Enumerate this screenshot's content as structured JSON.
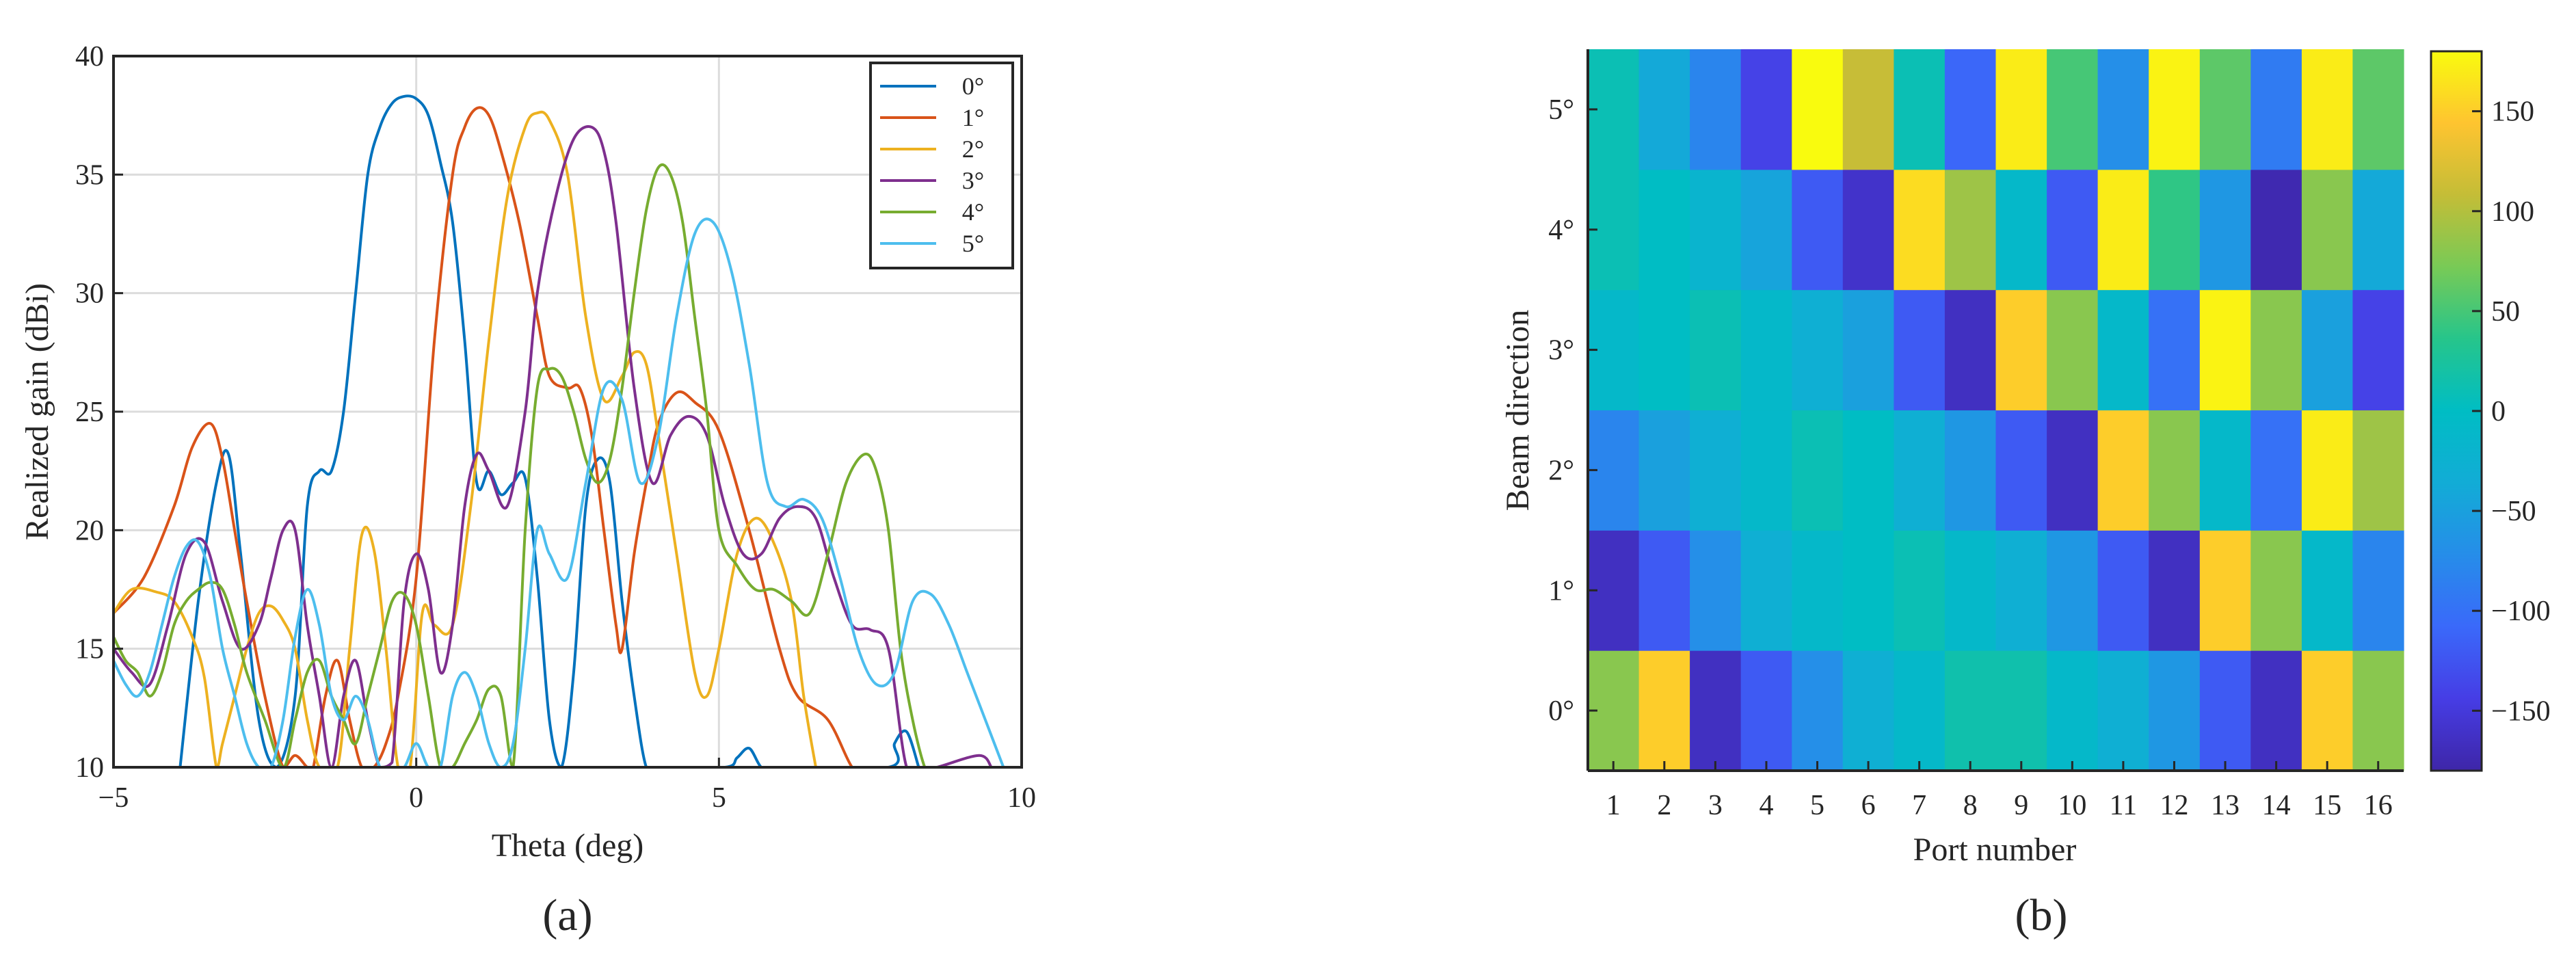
{
  "panel_labels": {
    "a": "(a)",
    "b": "(b)"
  },
  "chart_data": [
    {
      "type": "line",
      "xlabel": "Theta (deg)",
      "ylabel": "Realized gain (dBi)",
      "xlim": [
        -5,
        10
      ],
      "ylim": [
        10,
        40
      ],
      "xticks": [
        -5,
        0,
        5,
        10
      ],
      "yticks": [
        10,
        15,
        20,
        25,
        30,
        35,
        40
      ],
      "xtick_labels": [
        "−5",
        "0",
        "5",
        "10"
      ],
      "ytick_labels": [
        "10",
        "15",
        "20",
        "25",
        "30",
        "35",
        "40"
      ],
      "grid": true,
      "legend_position": "top-right",
      "series": [
        {
          "name": "0°",
          "color": "#0072BD",
          "x": [
            -3.9,
            -3.6,
            -3.3,
            -3.1,
            -2.9,
            -2.6,
            -2.3,
            -2.0,
            -1.8,
            -1.6,
            -1.4,
            -1.2,
            -1.0,
            -0.8,
            -0.6,
            -0.4,
            -0.2,
            0.0,
            0.2,
            0.4,
            0.6,
            0.8,
            1.0,
            1.2,
            1.4,
            1.6,
            1.8,
            2.0,
            2.2,
            2.4,
            2.6,
            2.8,
            3.0,
            3.2,
            3.4,
            3.6,
            3.8,
            4.0,
            5.1,
            5.3,
            5.5,
            5.7,
            5.9,
            7.8,
            7.9,
            8.1,
            8.3
          ],
          "y": [
            10,
            17,
            22,
            23.2,
            19,
            12,
            10,
            13,
            21,
            22.5,
            22.5,
            25,
            30,
            35,
            37,
            38,
            38.3,
            38.2,
            37.5,
            35.5,
            33,
            28,
            22,
            22.5,
            21.5,
            22,
            22.2,
            18,
            12,
            10,
            14,
            21,
            23,
            22,
            17,
            13,
            10,
            10,
            10,
            10.4,
            10.8,
            10,
            10,
            10,
            11,
            11.5,
            10
          ]
        },
        {
          "name": "1°",
          "color": "#D95319",
          "x": [
            -5.0,
            -4.5,
            -4.0,
            -3.7,
            -3.4,
            -3.2,
            -3.0,
            -2.8,
            -2.5,
            -2.2,
            -2.0,
            -1.8,
            -1.7,
            -1.5,
            -1.3,
            -1.1,
            -0.9,
            -0.7,
            -0.5,
            -0.3,
            0.0,
            0.3,
            0.6,
            0.8,
            1.0,
            1.2,
            1.4,
            1.7,
            2.0,
            2.2,
            2.5,
            2.7,
            2.9,
            3.1,
            3.3,
            3.4,
            3.6,
            3.8,
            4.0,
            4.3,
            4.6,
            5.0,
            5.5,
            6.0,
            6.3,
            6.8,
            7.2,
            7.4
          ],
          "y": [
            16.5,
            18,
            21,
            23.5,
            24.5,
            23,
            20,
            17,
            13,
            10,
            10.5,
            10,
            10,
            13,
            14.5,
            12,
            10,
            10,
            11,
            13,
            18,
            28,
            35,
            37,
            37.8,
            37.5,
            36,
            33,
            29,
            26.5,
            26,
            26,
            24,
            20,
            16,
            15,
            19,
            22,
            24.5,
            25.8,
            25.4,
            24.2,
            20,
            15,
            13,
            12,
            10,
            10
          ]
        },
        {
          "name": "2°",
          "color": "#EDB120",
          "x": [
            -5.0,
            -4.7,
            -4.3,
            -4.0,
            -3.7,
            -3.5,
            -3.3,
            -3.2,
            -3.0,
            -2.8,
            -2.6,
            -2.4,
            -2.2,
            -2.0,
            -1.8,
            -1.6,
            -1.3,
            -1.1,
            -0.9,
            -0.7,
            -0.5,
            -0.3,
            -0.1,
            0.1,
            0.3,
            0.6,
            0.9,
            1.2,
            1.5,
            1.8,
            2.0,
            2.2,
            2.5,
            2.8,
            3.1,
            3.4,
            3.6,
            3.8,
            4.0,
            4.3,
            4.6,
            4.8,
            5.0,
            5.3,
            5.6,
            5.9,
            6.2,
            6.4,
            6.6
          ],
          "y": [
            16.5,
            17.5,
            17.4,
            17,
            15.5,
            13.8,
            10,
            11,
            13,
            15,
            16.5,
            16.8,
            16.2,
            15,
            12,
            10,
            10,
            15,
            19.8,
            19.2,
            15,
            10,
            10,
            16.5,
            16,
            16,
            21,
            28,
            34,
            37,
            37.6,
            37.3,
            35,
            29,
            25.5,
            26.5,
            27.5,
            27,
            24,
            19,
            14,
            13,
            15,
            19,
            20.5,
            19.5,
            17,
            13,
            10
          ]
        },
        {
          "name": "3°",
          "color": "#7E2F8E",
          "x": [
            -5.0,
            -4.7,
            -4.4,
            -4.1,
            -3.8,
            -3.5,
            -3.2,
            -2.9,
            -2.6,
            -2.4,
            -2.2,
            -2.0,
            -1.8,
            -1.6,
            -1.4,
            -1.2,
            -1.0,
            -0.8,
            -0.6,
            -0.4,
            -0.2,
            0.0,
            0.2,
            0.4,
            0.6,
            0.8,
            1.0,
            1.2,
            1.5,
            1.8,
            2.0,
            2.3,
            2.6,
            2.9,
            3.1,
            3.3,
            3.6,
            3.9,
            4.2,
            4.5,
            4.8,
            5.1,
            5.4,
            5.7,
            6.0,
            6.3,
            6.6,
            6.9,
            7.2,
            7.5,
            7.8,
            8.1,
            8.4,
            8.6,
            9.3,
            9.5
          ],
          "y": [
            15,
            14,
            13.5,
            16,
            19,
            19.5,
            17,
            15,
            16,
            18,
            20,
            20,
            16,
            13,
            10,
            13,
            14.5,
            12,
            10,
            10.2,
            17,
            19,
            17.5,
            14,
            16,
            21,
            23.2,
            22.5,
            21,
            25,
            30,
            34,
            36.5,
            37,
            36,
            33,
            26,
            22,
            24,
            24.8,
            24,
            21,
            19,
            19,
            20.5,
            21,
            20.5,
            18,
            16,
            15.8,
            15,
            10,
            10,
            10,
            10.5,
            10
          ]
        },
        {
          "name": "4°",
          "color": "#77AC30",
          "x": [
            -5.0,
            -4.8,
            -4.6,
            -4.4,
            -4.2,
            -4.0,
            -3.8,
            -3.6,
            -3.4,
            -3.2,
            -3.0,
            -2.8,
            -2.5,
            -2.2,
            -2.0,
            -1.8,
            -1.6,
            -1.4,
            -1.2,
            -1.0,
            -0.8,
            -0.6,
            -0.4,
            -0.2,
            0.0,
            0.2,
            0.4,
            0.6,
            0.8,
            1.0,
            1.2,
            1.4,
            1.6,
            1.8,
            2.0,
            2.2,
            2.4,
            2.6,
            2.8,
            3.0,
            3.2,
            3.4,
            3.6,
            3.8,
            4.0,
            4.2,
            4.4,
            4.6,
            4.8,
            5.0,
            5.3,
            5.6,
            5.9,
            6.2,
            6.5,
            6.8,
            7.1,
            7.4,
            7.6,
            7.8,
            8.0,
            8.2,
            8.4,
            8.5
          ],
          "y": [
            15.5,
            14.5,
            14,
            13,
            14,
            16,
            17,
            17.5,
            17.8,
            17.5,
            16,
            14,
            12,
            10,
            12,
            14,
            14.5,
            13,
            12,
            11,
            13,
            15,
            17,
            17.3,
            16,
            13,
            10,
            10,
            11,
            12,
            13.3,
            13,
            10,
            20,
            26,
            26.8,
            26.5,
            25,
            23,
            22,
            23,
            26,
            30,
            33.5,
            35.3,
            35,
            33,
            29,
            25,
            20,
            18.5,
            17.5,
            17.5,
            17,
            16.5,
            19,
            22,
            23.2,
            22.5,
            20,
            15,
            12,
            10,
            10
          ]
        },
        {
          "name": "5°",
          "color": "#4DBEEE",
          "x": [
            -5.0,
            -4.8,
            -4.6,
            -4.4,
            -4.2,
            -4.0,
            -3.8,
            -3.6,
            -3.4,
            -3.2,
            -3.0,
            -2.8,
            -2.6,
            -2.4,
            -2.2,
            -2.0,
            -1.8,
            -1.6,
            -1.4,
            -1.2,
            -1.0,
            -0.8,
            -0.6,
            -0.4,
            -0.2,
            0.0,
            0.2,
            0.4,
            0.6,
            0.8,
            1.0,
            1.2,
            1.4,
            1.6,
            1.8,
            2.0,
            2.2,
            2.5,
            2.8,
            3.1,
            3.4,
            3.7,
            4.0,
            4.3,
            4.6,
            4.9,
            5.2,
            5.5,
            5.8,
            6.1,
            6.4,
            6.7,
            7.0,
            7.3,
            7.6,
            7.9,
            8.2,
            8.5,
            8.8,
            9.1,
            9.4,
            9.7
          ],
          "y": [
            14.5,
            13.5,
            13,
            14,
            16,
            18,
            19.3,
            19.5,
            18,
            15,
            13,
            11,
            10,
            10,
            12,
            15.5,
            17.5,
            16,
            13,
            12,
            13,
            12,
            10,
            10,
            10,
            11,
            10,
            10,
            13,
            14,
            13,
            11,
            10,
            11,
            15,
            20,
            19,
            18,
            22,
            26,
            25.5,
            22,
            24,
            29,
            32.5,
            33,
            31,
            27,
            22,
            21,
            21.3,
            20.5,
            18,
            15,
            13.5,
            14,
            17,
            17.3,
            16,
            14,
            12,
            10
          ]
        }
      ]
    },
    {
      "type": "heatmap",
      "xlabel": "Port number",
      "ylabel": "Beam direction",
      "categories_x": [
        "1",
        "2",
        "3",
        "4",
        "5",
        "6",
        "7",
        "8",
        "9",
        "10",
        "11",
        "12",
        "13",
        "14",
        "15",
        "16"
      ],
      "categories_y": [
        "0°",
        "1°",
        "2°",
        "3°",
        "4°",
        "5°"
      ],
      "colorbar": {
        "range": [
          -180,
          180
        ],
        "ticks": [
          -150,
          -100,
          -50,
          0,
          50,
          100,
          150
        ],
        "tick_labels": [
          "−150",
          "−100",
          "−50",
          "0",
          "50",
          "100",
          "150"
        ]
      },
      "rows": [
        {
          "beam": "0°",
          "values": [
            80,
            150,
            -165,
            -120,
            -70,
            -30,
            -10,
            15,
            15,
            -10,
            -30,
            -60,
            -120,
            -165,
            150,
            80
          ]
        },
        {
          "beam": "1°",
          "values": [
            -165,
            -120,
            -70,
            -30,
            -10,
            0,
            10,
            -10,
            -30,
            -60,
            -120,
            -165,
            150,
            80,
            -10,
            -80
          ]
        },
        {
          "beam": "2°",
          "values": [
            -80,
            -50,
            -30,
            -10,
            10,
            0,
            -30,
            -60,
            -120,
            -165,
            150,
            80,
            -10,
            -100,
            170,
            90
          ]
        },
        {
          "beam": "3°",
          "values": [
            -10,
            0,
            10,
            -10,
            -30,
            -50,
            -120,
            -165,
            150,
            80,
            -10,
            -100,
            175,
            80,
            -50,
            -140
          ]
        },
        {
          "beam": "4°",
          "values": [
            10,
            0,
            -20,
            -45,
            -120,
            -160,
            160,
            90,
            -10,
            -120,
            170,
            40,
            -60,
            -175,
            80,
            -40
          ]
        },
        {
          "beam": "5°",
          "values": [
            10,
            -40,
            -80,
            -140,
            180,
            110,
            10,
            -110,
            170,
            50,
            -70,
            175,
            60,
            -90,
            170,
            60
          ]
        }
      ]
    }
  ]
}
